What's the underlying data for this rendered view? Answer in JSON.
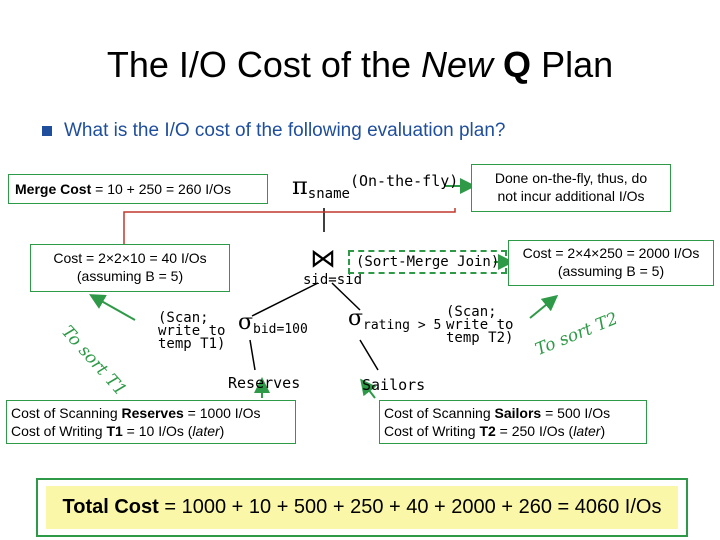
{
  "title": {
    "pre": "The I/O Cost of the ",
    "new": "New",
    "q": "Q",
    "post": " Plan"
  },
  "question": "What is the I/O cost of the following evaluation plan?",
  "merge_cost": {
    "label": "Merge Cost",
    "value": " = 10 + 250 = 260 I/Os"
  },
  "projection": {
    "symbol": "π",
    "subscript": "sname",
    "note": "(On-the-fly)"
  },
  "on_the_fly_note": {
    "line1": "Done on-the-fly, thus, do",
    "line2": "not incur additional I/Os"
  },
  "join": {
    "symbol": "⋈",
    "subscript": "sid=sid",
    "note": "(Sort-Merge Join)"
  },
  "cost_left": {
    "line1": "Cost = 2×2×10 = 40 I/Os",
    "line2": "(assuming B = 5)"
  },
  "cost_right": {
    "line1": "Cost = 2×4×250 = 2000 I/Os",
    "line2": "(assuming B = 5)"
  },
  "sort_t1": "To sort T1",
  "sort_t2": "To sort T2",
  "left_scan": {
    "line1": "(Scan;",
    "line2": "write to",
    "line3": "temp T1)"
  },
  "left_select": {
    "symbol": "σ",
    "subscript": "bid=100"
  },
  "right_select": {
    "symbol": "σ",
    "subscript": "rating > 5"
  },
  "right_scan": {
    "line1": "(Scan;",
    "line2": "write to",
    "line3": "temp T2)"
  },
  "reserves": "Reserves",
  "sailors": "Sailors",
  "reserves_cost": {
    "l1_pre": "Cost of Scanning ",
    "l1_bold": "Reserves",
    "l1_post": " = 1000 I/Os",
    "l2_pre": "Cost of Writing ",
    "l2_bold": "T1",
    "l2_post": " = 10 I/Os (",
    "l2_it": "later",
    "l2_end": ")"
  },
  "sailors_cost": {
    "l1_pre": "Cost of Scanning ",
    "l1_bold": "Sailors",
    "l1_post": " = 500 I/Os",
    "l2_pre": "Cost of Writing ",
    "l2_bold": "T2",
    "l2_post": " = 250 I/Os (",
    "l2_it": "later",
    "l2_end": ")"
  },
  "total": {
    "label": "Total Cost",
    "value": " = 1000 + 10 + 500 + 250 + 40 + 2000 + 260 = 4060 I/Os"
  },
  "colors": {
    "accent_green": "#2e9a47",
    "arrow_red": "#c0392b",
    "bullet_blue": "#1f4e9c",
    "highlight_yellow": "#fbf7a8"
  }
}
